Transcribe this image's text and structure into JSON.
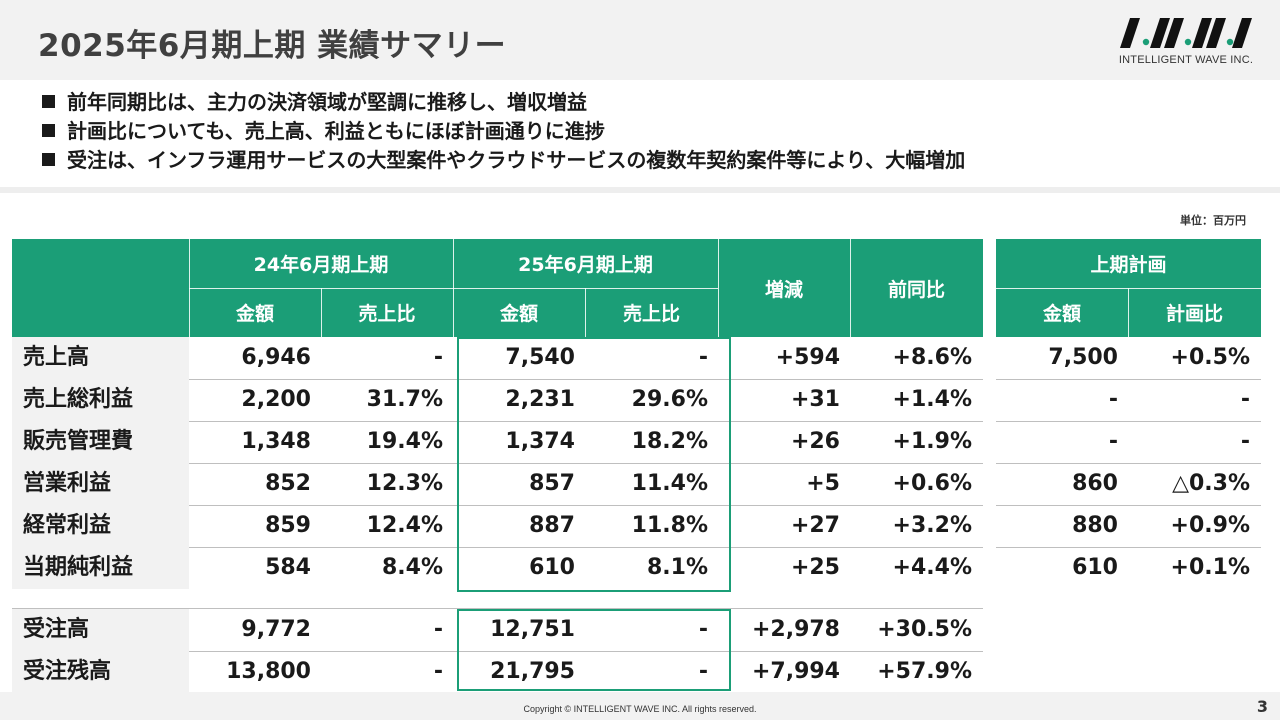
{
  "title": "2025年6月期上期 業績サマリー",
  "logo": {
    "text": "INTELLIGENT WAVE INC."
  },
  "bullets": [
    "前年同期比は、主力の決済領域が堅調に推移し、増収増益",
    "計画比についても、売上高、利益ともにほぼ計画通りに進捗",
    "受注は、インフラ運用サービスの大型案件やクラウドサービスの複数年契約案件等により、大幅増加"
  ],
  "unit": "単位：百万円",
  "table_header": {
    "period_prev": "24年6月期上期",
    "period_curr": "25年6月期上期",
    "amount": "金額",
    "sales_ratio": "売上比",
    "change": "増減",
    "yoy": "前同比",
    "plan": "上期計画",
    "plan_amount": "金額",
    "plan_ratio": "計画比"
  },
  "rows": [
    {
      "label": "売上高",
      "prev_amount": "6,946",
      "prev_ratio": "-",
      "curr_amount": "7,540",
      "curr_ratio": "-",
      "change": "+594",
      "yoy": "+8.6%",
      "plan_amount": "7,500",
      "plan_ratio": "+0.5%"
    },
    {
      "label": "売上総利益",
      "prev_amount": "2,200",
      "prev_ratio": "31.7%",
      "curr_amount": "2,231",
      "curr_ratio": "29.6%",
      "change": "+31",
      "yoy": "+1.4%",
      "plan_amount": "-",
      "plan_ratio": "-"
    },
    {
      "label": "販売管理費",
      "prev_amount": "1,348",
      "prev_ratio": "19.4%",
      "curr_amount": "1,374",
      "curr_ratio": "18.2%",
      "change": "+26",
      "yoy": "+1.9%",
      "plan_amount": "-",
      "plan_ratio": "-"
    },
    {
      "label": "営業利益",
      "prev_amount": "852",
      "prev_ratio": "12.3%",
      "curr_amount": "857",
      "curr_ratio": "11.4%",
      "change": "+5",
      "yoy": "+0.6%",
      "plan_amount": "860",
      "plan_ratio": "△0.3%"
    },
    {
      "label": "経常利益",
      "prev_amount": "859",
      "prev_ratio": "12.4%",
      "curr_amount": "887",
      "curr_ratio": "11.8%",
      "change": "+27",
      "yoy": "+3.2%",
      "plan_amount": "880",
      "plan_ratio": "+0.9%"
    },
    {
      "label": "当期純利益",
      "prev_amount": "584",
      "prev_ratio": "8.4%",
      "curr_amount": "610",
      "curr_ratio": "8.1%",
      "change": "+25",
      "yoy": "+4.4%",
      "plan_amount": "610",
      "plan_ratio": "+0.1%"
    }
  ],
  "orders": [
    {
      "label": "受注高",
      "prev_amount": "9,772",
      "prev_ratio": "-",
      "curr_amount": "12,751",
      "curr_ratio": "-",
      "change": "+2,978",
      "yoy": "+30.5%"
    },
    {
      "label": "受注残高",
      "prev_amount": "13,800",
      "prev_ratio": "-",
      "curr_amount": "21,795",
      "curr_ratio": "-",
      "change": "+7,994",
      "yoy": "+57.9%"
    }
  ],
  "footer": {
    "copyright": "Copyright © INTELLIGENT WAVE INC. All rights reserved.",
    "page": "3"
  },
  "colors": {
    "accent": "#1b9e77"
  }
}
